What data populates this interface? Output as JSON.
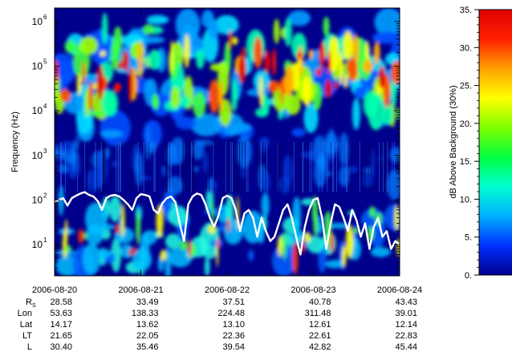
{
  "chart_data": {
    "type": "heatmap",
    "title": "",
    "ylabel": "Frequency (Hz)",
    "yscale": "log",
    "ylim": [
      2,
      2000000
    ],
    "y_ticks": [
      {
        "value": 10,
        "base": "10",
        "exp": "1"
      },
      {
        "value": 100,
        "base": "10",
        "exp": "2"
      },
      {
        "value": 1000,
        "base": "10",
        "exp": "3"
      },
      {
        "value": 10000,
        "base": "10",
        "exp": "4"
      },
      {
        "value": 100000,
        "base": "10",
        "exp": "5"
      },
      {
        "value": 1000000,
        "base": "10",
        "exp": "6"
      }
    ],
    "x_ticks": [
      "2006-08-20",
      "2006-08-21",
      "2006-08-22",
      "2006-08-23",
      "2006-08-24"
    ],
    "xlim": [
      "2006-08-20",
      "2006-08-24"
    ],
    "colorbar": {
      "label": "dB Above Background (30%)",
      "range": [
        0,
        35
      ],
      "ticks": [
        "0.",
        "5.",
        "10.",
        "15.",
        "20.",
        "25.",
        "30.",
        "35."
      ],
      "colors": [
        "#000090",
        "#0030ff",
        "#00b0ff",
        "#00ffd0",
        "#00ff40",
        "#80ff00",
        "#ffff00",
        "#ffa000",
        "#ff2000",
        "#e00000"
      ]
    },
    "overlay_line": {
      "color": "#ffffff",
      "x_day": [
        0,
        0.05,
        0.1,
        0.15,
        0.2,
        0.25,
        0.3,
        0.35,
        0.4,
        0.45,
        0.5,
        0.55,
        0.6,
        0.65,
        0.7,
        0.75,
        0.8,
        0.85,
        0.9,
        0.95,
        1.0,
        1.05,
        1.1,
        1.15,
        1.2,
        1.25,
        1.3,
        1.35,
        1.4,
        1.45,
        1.5,
        1.55,
        1.6,
        1.65,
        1.7,
        1.75,
        1.8,
        1.85,
        1.9,
        1.95,
        2.0,
        2.05,
        2.1,
        2.15,
        2.2,
        2.25,
        2.3,
        2.35,
        2.4,
        2.45,
        2.5,
        2.55,
        2.6,
        2.65,
        2.7,
        2.75,
        2.8,
        2.85,
        2.9,
        2.95,
        3.0,
        3.05,
        3.1,
        3.15,
        3.2,
        3.25,
        3.3,
        3.35,
        3.4,
        3.45,
        3.5,
        3.55,
        3.6,
        3.65,
        3.7,
        3.75,
        3.8,
        3.85,
        3.9,
        3.95,
        4.0
      ],
      "y_hz": [
        90,
        100,
        110,
        75,
        110,
        125,
        140,
        150,
        130,
        120,
        95,
        60,
        110,
        125,
        130,
        120,
        100,
        80,
        60,
        110,
        135,
        130,
        120,
        60,
        50,
        85,
        110,
        120,
        90,
        30,
        12,
        80,
        120,
        140,
        130,
        80,
        40,
        25,
        45,
        110,
        125,
        110,
        60,
        20,
        50,
        60,
        40,
        15,
        40,
        20,
        12,
        15,
        30,
        60,
        80,
        40,
        15,
        6,
        25,
        60,
        100,
        110,
        40,
        8,
        30,
        80,
        70,
        40,
        20,
        60,
        35,
        15,
        30,
        8,
        25,
        40,
        15,
        20,
        8,
        12,
        10
      ]
    },
    "ephemeris": {
      "rows": [
        {
          "label": "R",
          "sub": "S",
          "values": [
            "28.58",
            "33.49",
            "37.51",
            "40.78",
            "43.43"
          ]
        },
        {
          "label": "Lon",
          "sub": "",
          "values": [
            "53.63",
            "138.33",
            "224.48",
            "311.48",
            "39.01"
          ]
        },
        {
          "label": "Lat",
          "sub": "",
          "values": [
            "14.17",
            "13.62",
            "13.10",
            "12.61",
            "12.14"
          ]
        },
        {
          "label": "LT",
          "sub": "",
          "values": [
            "21.65",
            "22.05",
            "22.36",
            "22.61",
            "22.83"
          ]
        },
        {
          "label": "L",
          "sub": "",
          "values": [
            "30.40",
            "35.46",
            "39.54",
            "42.82",
            "45.44"
          ]
        }
      ]
    }
  }
}
